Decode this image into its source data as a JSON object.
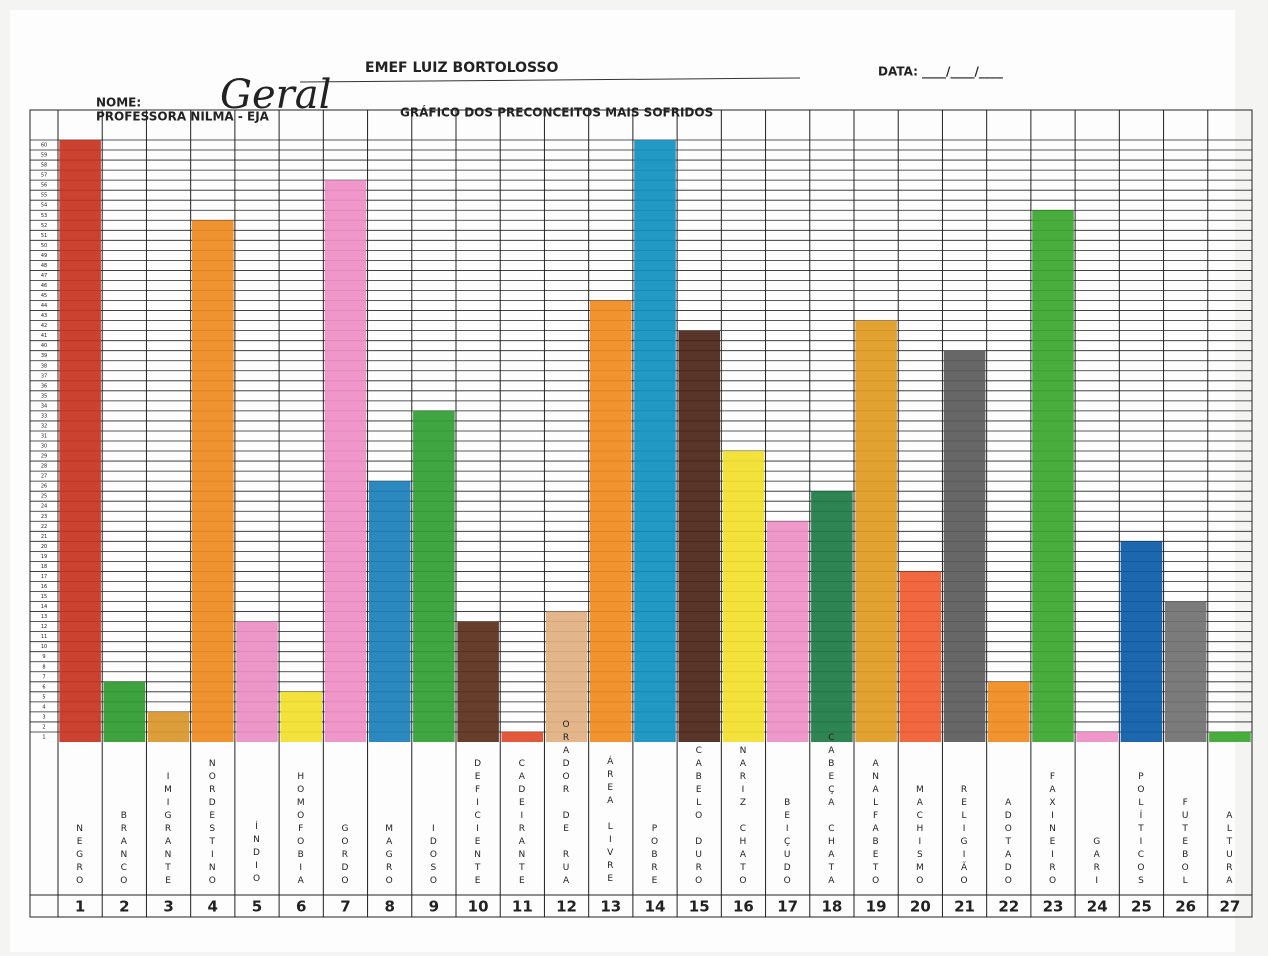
{
  "header": {
    "school": "EMEF LUIZ BORTOLOSSO",
    "date": "DATA: ____/____/____",
    "name_label": "NOME:",
    "name_value": "Geral",
    "teacher": "PROFESSORA NILMA - EJA"
  },
  "chart_data": {
    "type": "bar",
    "title": "GRÁFICO DOS PRECONCEITOS MAIS SOFRIDOS",
    "categories": [
      "NEGRO",
      "BRANCO",
      "IMIGRANTE",
      "NORDESTINO",
      "ÍNDIO",
      "HOMOFOBIA",
      "GORDO",
      "MAGRO",
      "IDOSO",
      "DEFICIENTE",
      "CADEIRANTE",
      "ORADOR DE RUA",
      "ÁREA LIVRE",
      "POBRE",
      "CABELO DURO",
      "NARIZ CHATO",
      "BEIÇUDO",
      "CABEÇA CHATA",
      "ANALFABETO",
      "MACHISMO",
      "RELIGIÃO",
      "ADOTADO",
      "FAXINEIRO",
      "GARI",
      "POLÍTICOS",
      "FUTEBOL",
      "ALTURA"
    ],
    "category_numbers": [
      1,
      2,
      3,
      4,
      5,
      6,
      7,
      8,
      9,
      10,
      11,
      12,
      13,
      14,
      15,
      16,
      17,
      18,
      19,
      20,
      21,
      22,
      23,
      24,
      25,
      26,
      27
    ],
    "values": [
      60,
      6,
      3,
      52,
      12,
      5,
      56,
      26,
      33,
      12,
      1,
      13,
      44,
      60,
      41,
      29,
      22,
      25,
      42,
      17,
      39,
      6,
      53,
      1,
      20,
      14,
      1
    ],
    "colors": [
      "#c8321e",
      "#2e9a2e",
      "#d8962a",
      "#ee8a1e",
      "#ec8ec4",
      "#f2e02a",
      "#ef8ec6",
      "#1a7fba",
      "#2f9e32",
      "#5a2e1a",
      "#e04a2a",
      "#e0b080",
      "#f08a1c",
      "#0f8fbf",
      "#4a2416",
      "#f2df2a",
      "#ee8fc6",
      "#1c7a44",
      "#e09a20",
      "#ef5a30",
      "#5a5a5a",
      "#f08a1c",
      "#3aa62e",
      "#ef8ec6",
      "#0a5aa8",
      "#707070",
      "#3aa62e"
    ],
    "ylim": [
      0,
      60
    ],
    "yticks": [
      1,
      2,
      3,
      4,
      5,
      6,
      7,
      8,
      9,
      10,
      11,
      12,
      13,
      14,
      15,
      16,
      17,
      18,
      19,
      20,
      21,
      22,
      23,
      24,
      25,
      26,
      27,
      28,
      29,
      30,
      31,
      32,
      33,
      34,
      35,
      36,
      37,
      38,
      39,
      40,
      41,
      42,
      43,
      44,
      45,
      46,
      47,
      48,
      49,
      50,
      51,
      52,
      53,
      54,
      55,
      56,
      57,
      58,
      59,
      60
    ],
    "grid": true
  }
}
